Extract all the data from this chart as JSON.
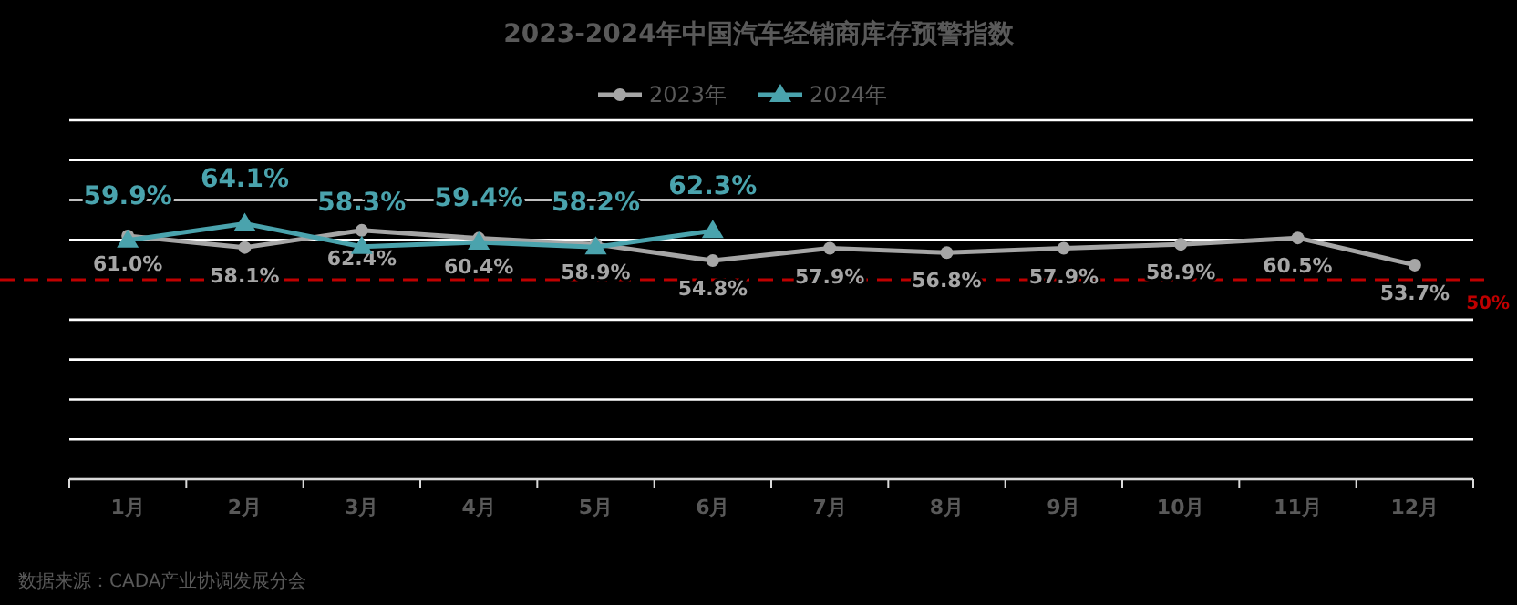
{
  "chart_data": {
    "type": "line",
    "title": "2023-2024年中国汽车经销商库存预警指数",
    "categories": [
      "1月",
      "2月",
      "3月",
      "4月",
      "5月",
      "6月",
      "7月",
      "8月",
      "9月",
      "10月",
      "11月",
      "12月"
    ],
    "series": [
      {
        "name": "2023年",
        "color": "#a6a6a6",
        "marker": "circle",
        "values": [
          61.0,
          58.1,
          62.4,
          60.4,
          58.9,
          54.8,
          57.9,
          56.8,
          57.9,
          58.9,
          60.5,
          53.7
        ],
        "value_labels": [
          "61.0%",
          "58.1%",
          "62.4%",
          "60.4%",
          "58.9%",
          "54.8%",
          "57.9%",
          "56.8%",
          "57.9%",
          "58.9%",
          "60.5%",
          "53.7%"
        ]
      },
      {
        "name": "2024年",
        "color": "#4aa3ad",
        "marker": "triangle",
        "values": [
          59.9,
          64.1,
          58.3,
          59.4,
          58.2,
          62.3,
          null,
          null,
          null,
          null,
          null,
          null
        ],
        "value_labels": [
          "59.9%",
          "64.1%",
          "58.3%",
          "59.4%",
          "58.2%",
          "62.3%",
          null,
          null,
          null,
          null,
          null,
          null
        ]
      }
    ],
    "ylim": [
      0,
      90
    ],
    "yticks": [
      {
        "value": 0,
        "label": null
      },
      {
        "value": 10,
        "label": null
      },
      {
        "value": 20,
        "label": null
      },
      {
        "value": 30,
        "label": null
      },
      {
        "value": 40,
        "label": null
      },
      {
        "value": 60,
        "label": null
      },
      {
        "value": 70,
        "label": null
      },
      {
        "value": 80,
        "label": null
      },
      {
        "value": 90,
        "label": null
      }
    ],
    "tick_labels": "x",
    "grid": "y",
    "legend": "top",
    "ref_lines": [
      {
        "axis": "y",
        "value": 50,
        "label": "50%",
        "color": "#c00000",
        "line_style": "dashed"
      }
    ],
    "annotations": [
      "数据来源：CADA产业协调发展分会"
    ]
  }
}
